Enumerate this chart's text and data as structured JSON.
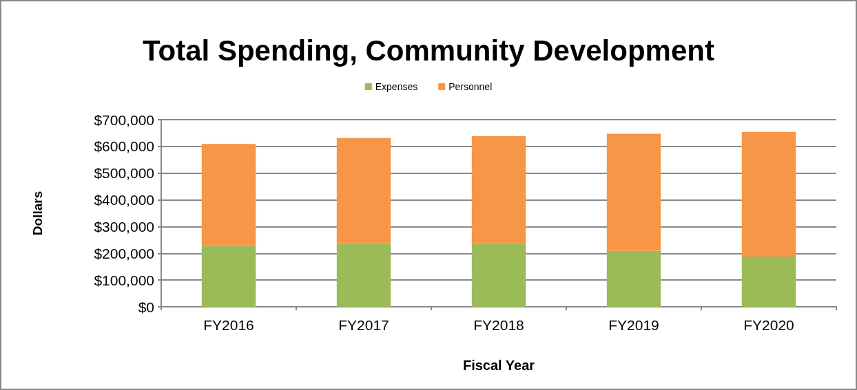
{
  "chart_data": {
    "type": "bar",
    "title": "Total Spending, Community Development",
    "xlabel": "Fiscal Year",
    "ylabel": "Dollars",
    "categories": [
      "FY2016",
      "FY2017",
      "FY2018",
      "FY2019",
      "FY2020"
    ],
    "stacked": true,
    "series": [
      {
        "name": "Expenses",
        "color": "#9bbb59",
        "values": [
          227000,
          235000,
          235000,
          209000,
          188000
        ]
      },
      {
        "name": "Personnel",
        "color": "#f79646",
        "values": [
          382000,
          397000,
          403000,
          438000,
          466000
        ]
      }
    ],
    "ylim": [
      0,
      700000
    ],
    "yticks": [
      {
        "value": 0,
        "label": "$0"
      },
      {
        "value": 100000,
        "label": "$100,000"
      },
      {
        "value": 200000,
        "label": "$200,000"
      },
      {
        "value": 300000,
        "label": "$300,000"
      },
      {
        "value": 400000,
        "label": "$400,000"
      },
      {
        "value": 500000,
        "label": "$500,000"
      },
      {
        "value": 600000,
        "label": "$600,000"
      },
      {
        "value": 700000,
        "label": "$700,000"
      }
    ],
    "grid": "y",
    "legend": "top"
  }
}
